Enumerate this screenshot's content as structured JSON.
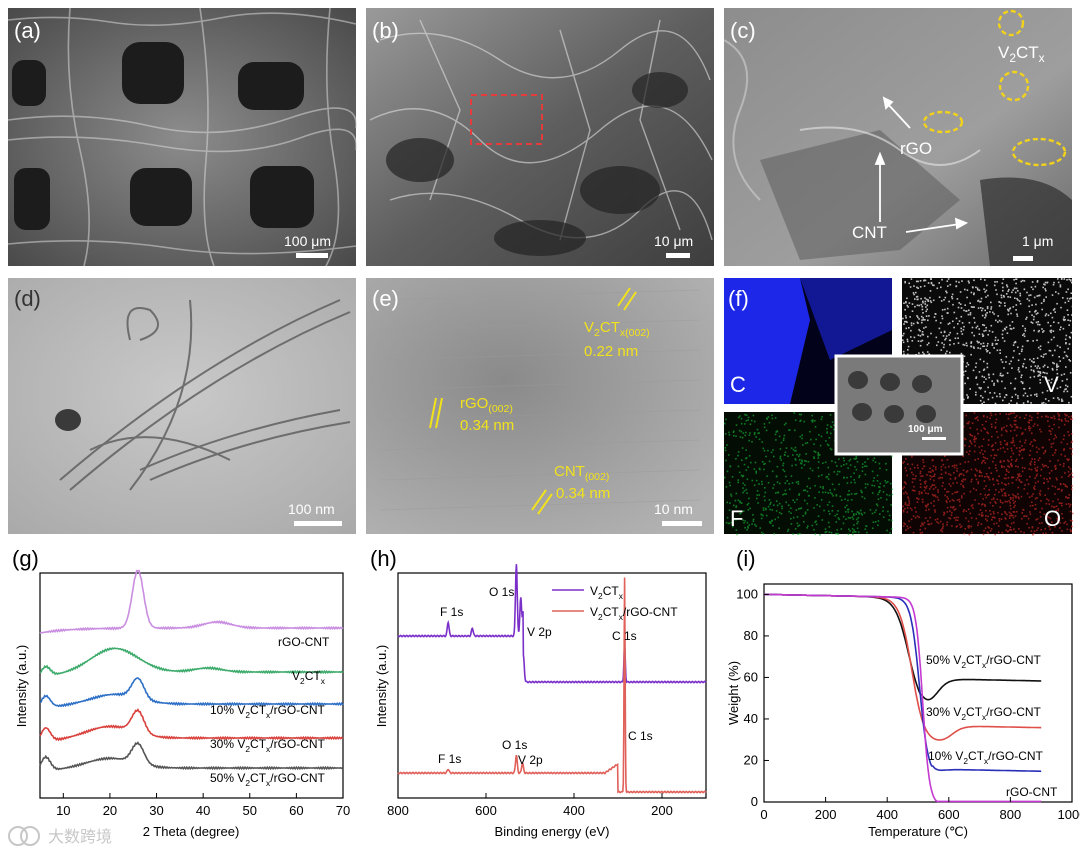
{
  "panels": {
    "a": {
      "letter": "(a)",
      "scale": "100 μm"
    },
    "b": {
      "letter": "(b)",
      "scale": "10 μm"
    },
    "c": {
      "letter": "(c)",
      "scale": "1 μm",
      "label_vctx": "V2CTx",
      "label_rgo": "rGO",
      "label_cnt": "CNT"
    },
    "d": {
      "letter": "(d)",
      "scale": "100 nm"
    },
    "e": {
      "letter": "(e)",
      "scale": "10 nm",
      "vctx_main": "V2CTx(002)",
      "vctx_d": "0.22 nm",
      "rgo_main": "rGO(002)",
      "rgo_d": "0.34 nm",
      "cnt_main": "CNT(002)",
      "cnt_d": "0.34 nm"
    },
    "f": {
      "letter": "(f)",
      "scale": "100 μm",
      "maps": [
        {
          "element": "C",
          "color": "#1f2bff"
        },
        {
          "element": "V",
          "color": "#ffffff"
        },
        {
          "element": "F",
          "color": "#18c23a"
        },
        {
          "element": "O",
          "color": "#e0302c"
        }
      ]
    }
  },
  "charts": {
    "g": {
      "letter": "(g)",
      "xlabel": "2 Theta (degree)",
      "ylabel": "Intensity (a.u.)",
      "xlim": [
        5,
        70
      ],
      "xticks": [
        10,
        20,
        30,
        40,
        50,
        60,
        70
      ],
      "series": [
        {
          "name": "rGO-CNT",
          "color": "#c98ee0"
        },
        {
          "name": "V2CTx",
          "color": "#3caa6a"
        },
        {
          "name": "10% V2CTx/rGO-CNT",
          "color": "#2d6fc6"
        },
        {
          "name": "30% V2CTx/rGO-CNT",
          "color": "#d9413c"
        },
        {
          "name": "50% V2CTx/rGO-CNT",
          "color": "#555555"
        }
      ]
    },
    "h": {
      "letter": "(h)",
      "xlabel": "Binding energy (eV)",
      "ylabel": "Intensity (a.u.)",
      "xlim": [
        800,
        100
      ],
      "xticks": [
        800,
        600,
        400,
        200
      ],
      "series": [
        {
          "name": "V2CTx",
          "color": "#7b2fc9"
        },
        {
          "name": "V2CTx/rGO-CNT",
          "color": "#e0605a"
        }
      ],
      "annotations_top": [
        "F 1s",
        "O 1s",
        "V 2p",
        "C 1s"
      ],
      "annotations_bottom": [
        "F 1s",
        "O 1s",
        "V 2p",
        "C 1s"
      ]
    },
    "i": {
      "letter": "(i)",
      "xlabel": "Temperature (℃)",
      "ylabel": "Weight (%)",
      "xlim": [
        0,
        1000
      ],
      "ylim": [
        0,
        105
      ],
      "xticks": [
        0,
        200,
        400,
        600,
        800,
        1000
      ],
      "yticks": [
        0,
        20,
        40,
        60,
        80,
        100
      ],
      "series": [
        {
          "name": "50% V2CTx/rGO-CNT",
          "color": "#111111",
          "final": 61
        },
        {
          "name": "30% V2CTx/rGO-CNT",
          "color": "#e0504a",
          "final": 38.5
        },
        {
          "name": "10% V2CTx/rGO-CNT",
          "color": "#2a2fb8",
          "final": 17.5
        },
        {
          "name": "rGO-CNT",
          "color": "#c43ad0",
          "final": 0.5
        }
      ]
    }
  },
  "watermark": "大数跨境"
}
